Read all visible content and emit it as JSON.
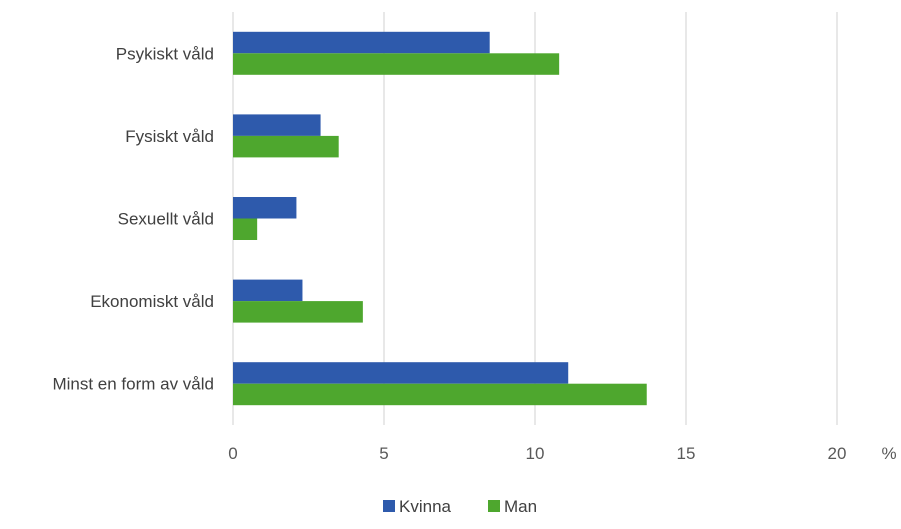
{
  "chart_data": {
    "type": "bar",
    "orientation": "horizontal",
    "title": "",
    "xlabel": "",
    "ylabel": "",
    "x_unit": "%",
    "categories": [
      "Psykiskt våld",
      "Fysiskt våld",
      "Sexuellt våld",
      "Ekonomiskt våld",
      "Minst en form av våld"
    ],
    "series": [
      {
        "name": "Kvinna",
        "color": "#2e5aac",
        "values": [
          8.5,
          2.9,
          2.1,
          2.3,
          11.1
        ]
      },
      {
        "name": "Man",
        "color": "#4ea72e",
        "values": [
          10.8,
          3.5,
          0.8,
          4.3,
          13.7
        ]
      }
    ],
    "xlim": [
      0,
      20
    ],
    "xticks": [
      0,
      5,
      10,
      15,
      20
    ],
    "grid": true,
    "legend_position": "bottom"
  }
}
